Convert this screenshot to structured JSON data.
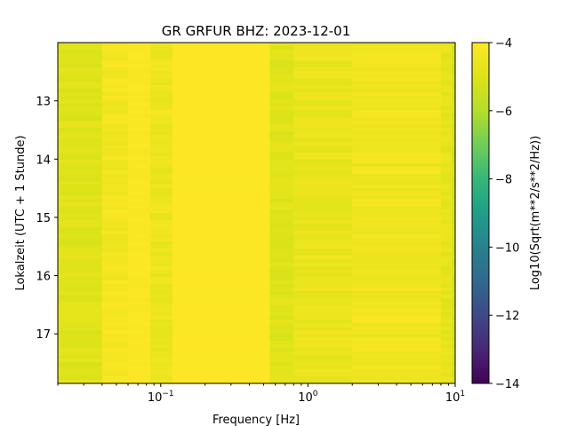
{
  "chart_data": {
    "type": "heatmap",
    "title": "GR GRFUR  BHZ: 2023-12-01",
    "xlabel": "Frequency [Hz]",
    "ylabel": "Lokalzeit (UTC + 1 Stunde)",
    "xscale": "log",
    "xlim": [
      0.02,
      10
    ],
    "ylim": [
      17.85,
      12.0
    ],
    "y_inverted": true,
    "x_ticks": [
      {
        "value": 0.1,
        "base": "10",
        "exp": "−1"
      },
      {
        "value": 1,
        "base": "10",
        "exp": "0"
      },
      {
        "value": 10,
        "base": "10",
        "exp": "1"
      }
    ],
    "y_ticks": [
      "13",
      "14",
      "15",
      "16",
      "17"
    ],
    "colorbar": {
      "label": "Log10(Sqrt(m**2/s**2/Hz))",
      "range": [
        -14,
        -4
      ],
      "ticks": [
        "−4",
        "−6",
        "−8",
        "−10",
        "−12",
        "−14"
      ],
      "colormap": "viridis"
    },
    "frequency_bands": [
      {
        "f_start": 0.02,
        "f_end": 0.04,
        "value": -4.9
      },
      {
        "f_start": 0.04,
        "f_end": 0.06,
        "value": -4.3
      },
      {
        "f_start": 0.06,
        "f_end": 0.085,
        "value": -4.1
      },
      {
        "f_start": 0.085,
        "f_end": 0.12,
        "value": -4.5
      },
      {
        "f_start": 0.12,
        "f_end": 0.55,
        "value": -4.0
      },
      {
        "f_start": 0.55,
        "f_end": 0.8,
        "value": -4.9
      },
      {
        "f_start": 0.8,
        "f_end": 2.0,
        "value": -4.6
      },
      {
        "f_start": 2.0,
        "f_end": 8.0,
        "value": -4.4
      },
      {
        "f_start": 8.0,
        "f_end": 9.5,
        "value": -4.7
      },
      {
        "f_start": 9.5,
        "f_end": 10.0,
        "value": -5.2
      }
    ]
  }
}
